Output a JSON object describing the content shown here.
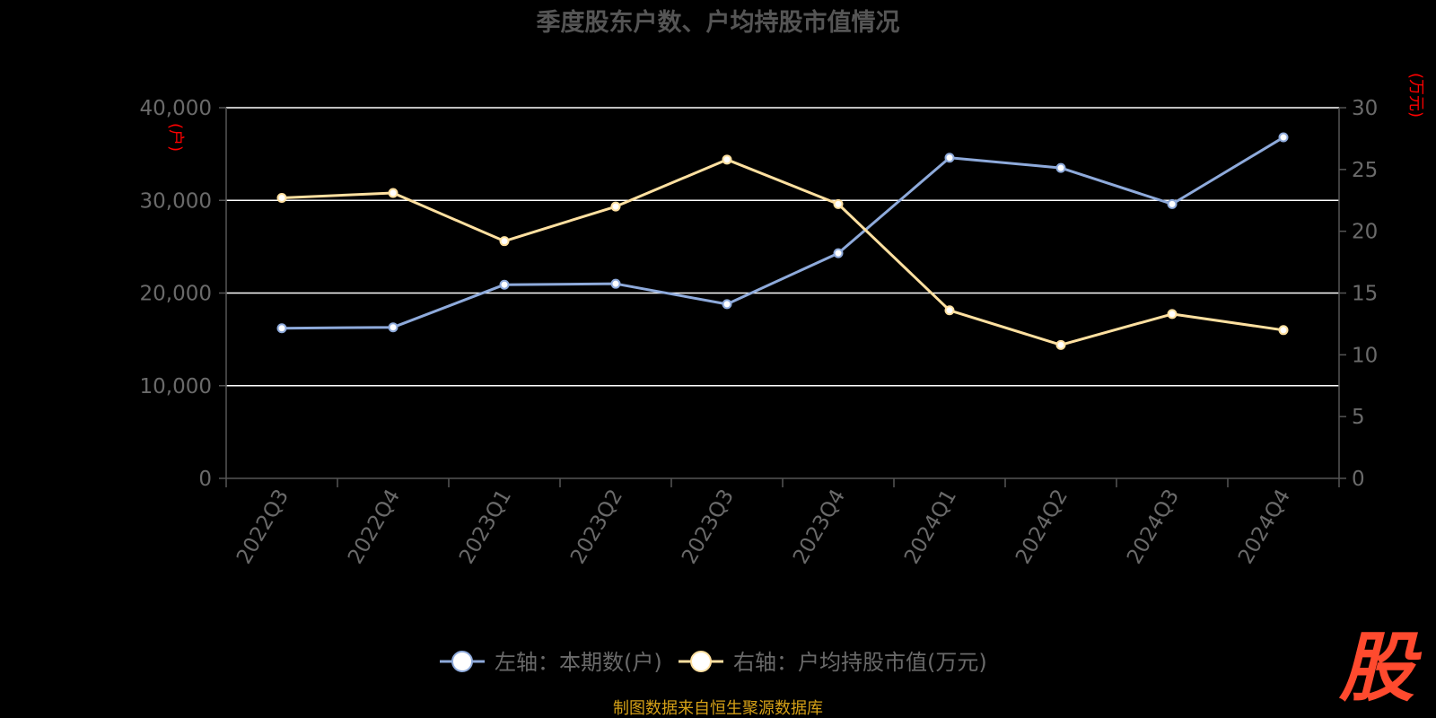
{
  "chart_data": {
    "type": "line",
    "title": "季度股东户数、户均持股市值情况",
    "categories": [
      "2022Q3",
      "2022Q4",
      "2023Q1",
      "2023Q2",
      "2023Q3",
      "2023Q4",
      "2024Q1",
      "2024Q2",
      "2024Q3",
      "2024Q4"
    ],
    "y_left": {
      "unit_label": "(户)",
      "ylim": [
        0,
        40000
      ],
      "ticks": [
        0,
        10000,
        20000,
        30000,
        40000
      ],
      "tick_labels": [
        "0",
        "10,000",
        "20,000",
        "30,000",
        "40,000"
      ]
    },
    "y_right": {
      "unit_label": "(万元)",
      "ylim": [
        0,
        30
      ],
      "ticks": [
        0,
        5,
        10,
        15,
        20,
        25,
        30
      ],
      "tick_labels": [
        "0",
        "5",
        "10",
        "15",
        "20",
        "25",
        "30"
      ]
    },
    "grid": true,
    "legend_position": "bottom-center",
    "series": [
      {
        "name": "左轴：本期数(户)",
        "axis": "left",
        "color": "#8eaadb",
        "values": [
          16200,
          16300,
          20900,
          21000,
          18800,
          24300,
          34600,
          33500,
          29600,
          36800
        ]
      },
      {
        "name": "右轴：户均持股市值(万元)",
        "axis": "right",
        "color": "#ffe0a0",
        "values": [
          22.7,
          23.1,
          19.2,
          22.0,
          25.8,
          22.2,
          13.6,
          10.8,
          13.3,
          12.0
        ]
      }
    ]
  },
  "source_note": "制图数据来自恒生聚源数据库",
  "logo_text": "股",
  "colors": {
    "background": "#000000",
    "axis": "#555555",
    "grid": "#ffffff",
    "tick_text": "#6a6a6a",
    "unit_text": "#ff0000",
    "title_text": "#555555",
    "source_text": "#d4a017"
  }
}
